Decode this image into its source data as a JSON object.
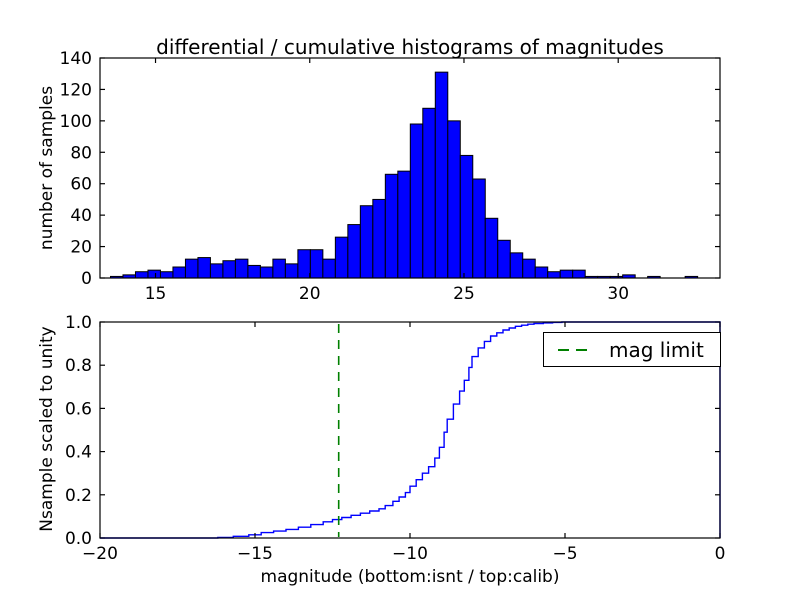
{
  "figure": {
    "background": "#ffffff",
    "accent_blue": "#0000ff",
    "accent_green": "#008000"
  },
  "chart_data": [
    {
      "type": "bar",
      "title": "differential / cumulative histograms of magnitudes",
      "ylabel": "number of samples",
      "xlabel": "",
      "xlim": [
        13.2,
        33.3
      ],
      "ylim": [
        0,
        140
      ],
      "xticks": [
        15,
        20,
        25,
        30
      ],
      "xtick_labels": [
        "15",
        "20",
        "25",
        "30"
      ],
      "yticks": [
        0,
        20,
        40,
        60,
        80,
        100,
        120,
        140
      ],
      "ytick_labels": [
        "0",
        "20",
        "40",
        "60",
        "80",
        "100",
        "120",
        "140"
      ],
      "grid": false,
      "bar_color": "#0000ff",
      "bar_edge_color": "#000000",
      "bin_start": 13.54,
      "bin_width": 0.405,
      "values": [
        1,
        2,
        4,
        5,
        4,
        7,
        12,
        13,
        9,
        11,
        12,
        8,
        7,
        12,
        9,
        18,
        18,
        12,
        26,
        34,
        46,
        50,
        66,
        68,
        98,
        108,
        131,
        100,
        78,
        63,
        38,
        24,
        16,
        12,
        7,
        4,
        5,
        5,
        1,
        1,
        1,
        2,
        0,
        1,
        0,
        0,
        1,
        0
      ]
    },
    {
      "type": "line",
      "style": "step-cumulative",
      "title": "",
      "ylabel": "Nsample scaled to unity",
      "xlabel": "magnitude (bottom:isnt / top:calib)",
      "xlim": [
        -20,
        0
      ],
      "ylim": [
        0.0,
        1.0
      ],
      "xticks": [
        -20,
        -15,
        -10,
        -5,
        0
      ],
      "xtick_labels": [
        "−20",
        "−15",
        "−10",
        "−5",
        "0"
      ],
      "yticks": [
        0,
        0.2,
        0.4,
        0.6,
        0.8,
        1
      ],
      "ytick_labels": [
        "0.0",
        "0.2",
        "0.4",
        "0.6",
        "0.8",
        "1.0"
      ],
      "grid": false,
      "line_color": "#0000ff",
      "points": [
        [
          -20,
          0
        ],
        [
          -16.2,
          0.003
        ],
        [
          -15.7,
          0.008
        ],
        [
          -15.2,
          0.015
        ],
        [
          -14.8,
          0.025
        ],
        [
          -14.4,
          0.032
        ],
        [
          -14.0,
          0.04
        ],
        [
          -13.6,
          0.05
        ],
        [
          -13.2,
          0.062
        ],
        [
          -12.8,
          0.075
        ],
        [
          -12.5,
          0.085
        ],
        [
          -12.2,
          0.095
        ],
        [
          -11.9,
          0.105
        ],
        [
          -11.6,
          0.115
        ],
        [
          -11.3,
          0.125
        ],
        [
          -11.0,
          0.135
        ],
        [
          -10.8,
          0.15
        ],
        [
          -10.55,
          0.17
        ],
        [
          -10.35,
          0.19
        ],
        [
          -10.15,
          0.21
        ],
        [
          -10.0,
          0.24
        ],
        [
          -9.8,
          0.27
        ],
        [
          -9.6,
          0.3
        ],
        [
          -9.4,
          0.33
        ],
        [
          -9.2,
          0.37
        ],
        [
          -9.05,
          0.42
        ],
        [
          -8.9,
          0.49
        ],
        [
          -8.8,
          0.55
        ],
        [
          -8.6,
          0.62
        ],
        [
          -8.4,
          0.68
        ],
        [
          -8.25,
          0.73
        ],
        [
          -8.1,
          0.79
        ],
        [
          -8.0,
          0.84
        ],
        [
          -7.8,
          0.88
        ],
        [
          -7.6,
          0.91
        ],
        [
          -7.4,
          0.935
        ],
        [
          -7.2,
          0.95
        ],
        [
          -7.0,
          0.963
        ],
        [
          -6.8,
          0.972
        ],
        [
          -6.6,
          0.98
        ],
        [
          -6.4,
          0.985
        ],
        [
          -6.2,
          0.99
        ],
        [
          -6.0,
          0.993
        ],
        [
          -5.7,
          0.996
        ],
        [
          -5.4,
          0.998
        ],
        [
          -5.1,
          1.0
        ],
        [
          0,
          1.0
        ]
      ],
      "mag_limit_line": {
        "x": -12.3,
        "color": "#008000",
        "style": "dashed",
        "label": "mag limit"
      },
      "legend": {
        "label": "mag limit",
        "position": "upper right",
        "sample_color": "#008000"
      }
    }
  ]
}
